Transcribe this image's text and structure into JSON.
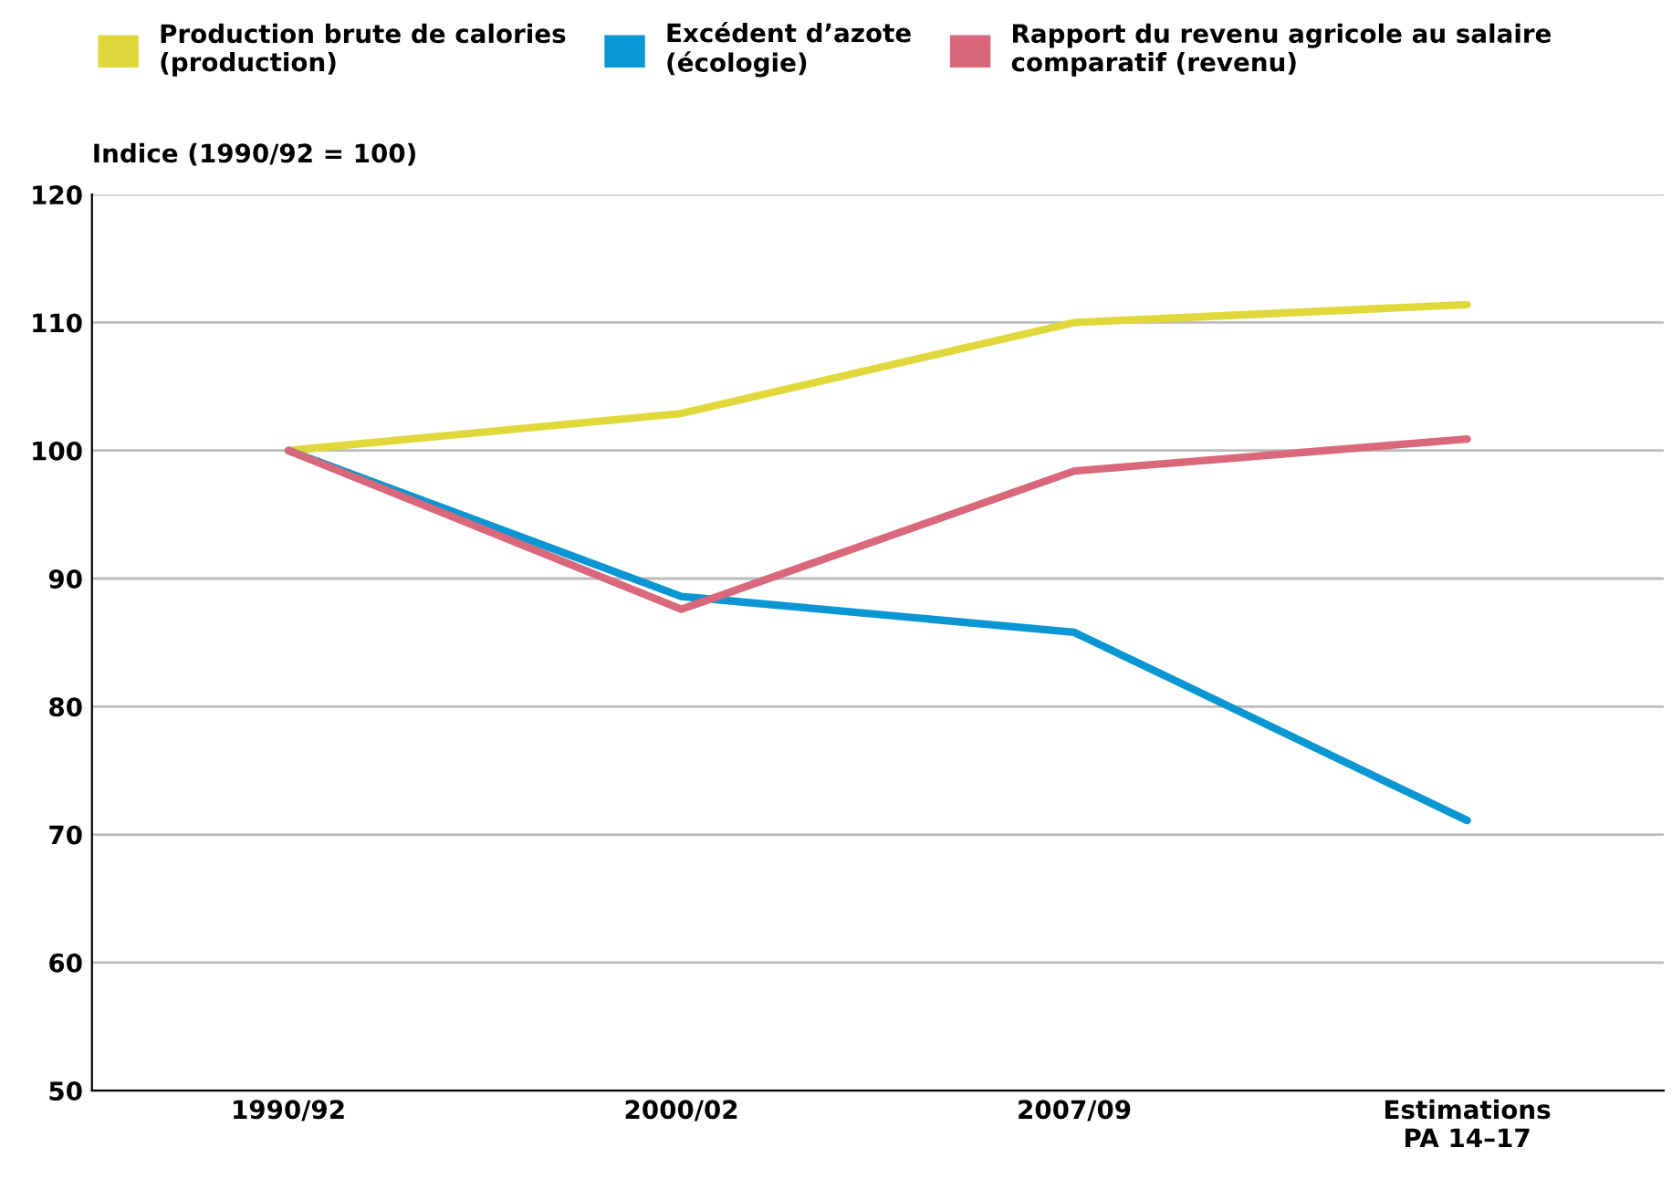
{
  "chart_data": {
    "type": "line",
    "ylabel": "Indice (1990/92 = 100)",
    "categories": [
      "1990/92",
      "2000/02",
      "2007/09",
      "Estimations\nPA 14–17"
    ],
    "series": [
      {
        "name": "Production brute de calories\n(production)",
        "color": "#e0d83a",
        "values": [
          100,
          102.9,
          110.0,
          111.4
        ]
      },
      {
        "name": "Excédent d’azote\n(écologie)",
        "color": "#0a96d2",
        "values": [
          100,
          88.6,
          85.8,
          71.1
        ]
      },
      {
        "name": "Rapport du revenu agricole au salaire\ncomparatif (revenu)",
        "color": "#d9687a",
        "values": [
          100,
          87.6,
          98.4,
          100.9
        ]
      }
    ],
    "ylim": [
      50,
      120
    ],
    "yticks": [
      50,
      60,
      70,
      80,
      90,
      100,
      110,
      120
    ],
    "grid": "y",
    "legend": "top",
    "marker": "none",
    "line_style": "solid"
  }
}
